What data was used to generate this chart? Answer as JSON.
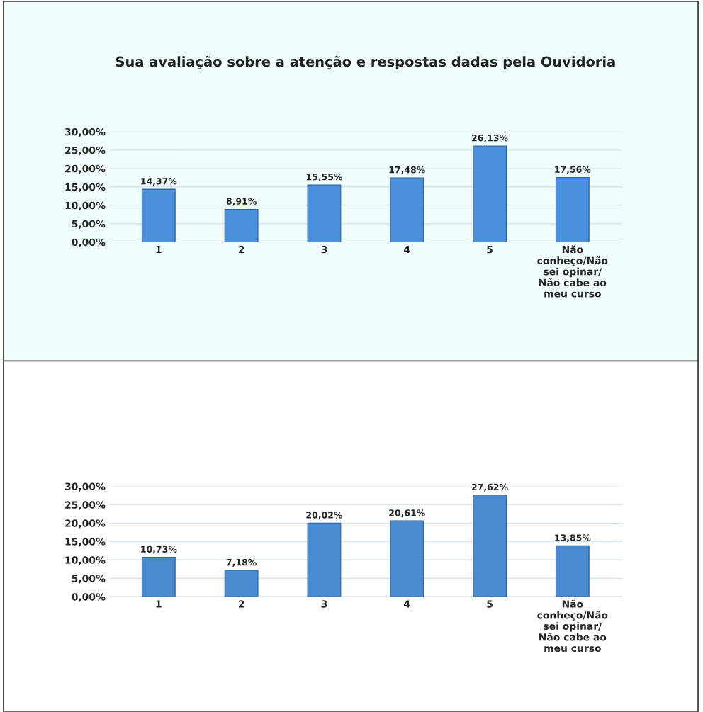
{
  "chart_data": [
    {
      "type": "bar",
      "title": "Sua avaliação sobre a atenção e respostas dadas pela Ouvidoria",
      "categories": [
        "1",
        "2",
        "3",
        "4",
        "5",
        "Não\nconheço/Não\nsei opinar/\nNão cabe ao\nmeu curso"
      ],
      "values": [
        14.37,
        8.91,
        15.55,
        17.48,
        26.13,
        17.56
      ],
      "value_labels": [
        "14,37%",
        "8,91%",
        "15,55%",
        "17,48%",
        "26,13%",
        "17,56%"
      ],
      "color": "#4a90dc",
      "ylim": [
        0,
        30
      ],
      "yticks": [
        {
          "value": 0,
          "label": "0,00%"
        },
        {
          "value": 5,
          "label": "5,00%"
        },
        {
          "value": 10,
          "label": "10,00%"
        },
        {
          "value": 15,
          "label": "15,00%"
        },
        {
          "value": 20,
          "label": "20,00%"
        },
        {
          "value": 25,
          "label": "25,00%"
        },
        {
          "value": 30,
          "label": "30,00%"
        }
      ],
      "grid": "y"
    },
    {
      "type": "bar",
      "categories": [
        "1",
        "2",
        "3",
        "4",
        "5",
        "Não\nconheço/Não\nsei opinar/\nNão cabe ao\nmeu curso"
      ],
      "values": [
        10.73,
        7.18,
        20.02,
        20.61,
        27.62,
        13.85
      ],
      "value_labels": [
        "10,73%",
        "7,18%",
        "20,02%",
        "20,61%",
        "27,62%",
        "13,85%"
      ],
      "color": "#4a8ad0",
      "ylim": [
        0,
        30
      ],
      "yticks": [
        {
          "value": 0,
          "label": "0,00%"
        },
        {
          "value": 5,
          "label": "5,00%"
        },
        {
          "value": 10,
          "label": "10,00%"
        },
        {
          "value": 15,
          "label": "15,00%"
        },
        {
          "value": 20,
          "label": "20,00%"
        },
        {
          "value": 25,
          "label": "25,00%"
        },
        {
          "value": 30,
          "label": "30,00%"
        }
      ],
      "grid": "y"
    }
  ]
}
